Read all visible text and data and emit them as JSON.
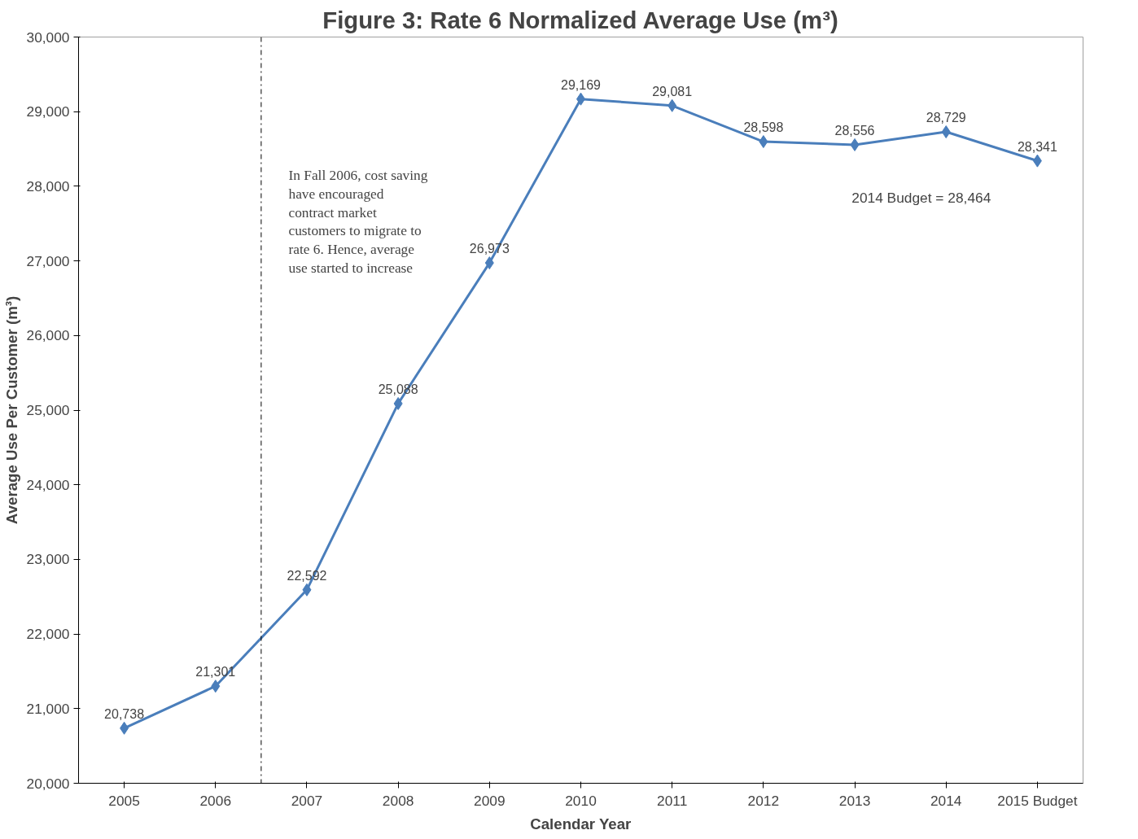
{
  "chart_data": {
    "type": "line",
    "title": "Figure 3: Rate 6 Normalized Average Use (m³)",
    "xlabel": "Calendar Year",
    "ylabel": "Average Use Per Customer (m³)",
    "x": [
      2005,
      2006,
      2007,
      2008,
      2009,
      2010,
      2011,
      2012,
      2013,
      2014,
      2015
    ],
    "xlim": [
      2004.5,
      2015.5
    ],
    "xticks": [
      2005,
      2006,
      2007,
      2008,
      2009,
      2010,
      2011,
      2012,
      2013,
      2014,
      {
        "value": 2015,
        "label": "2015 Budget"
      }
    ],
    "series": [
      {
        "color": "#4a7ebb",
        "values": [
          20738,
          21301,
          22592,
          25088,
          26973,
          29169,
          29081,
          28598,
          28556,
          28729,
          28341
        ],
        "value_labels": [
          "20,738",
          "21,301",
          "22,592",
          "25,088",
          "26,973",
          "29,169",
          "29,081",
          "28,598",
          "28,556",
          "28,729",
          "28,341"
        ]
      }
    ],
    "ylim": [
      20000,
      30000
    ],
    "yticks": [
      {
        "value": 20000,
        "label": "20,000"
      },
      {
        "value": 21000,
        "label": "21,000"
      },
      {
        "value": 22000,
        "label": "22,000"
      },
      {
        "value": 23000,
        "label": "23,000"
      },
      {
        "value": 24000,
        "label": "24,000"
      },
      {
        "value": 25000,
        "label": "25,000"
      },
      {
        "value": 26000,
        "label": "26,000"
      },
      {
        "value": 27000,
        "label": "27,000"
      },
      {
        "value": 28000,
        "label": "28,000"
      },
      {
        "value": 29000,
        "label": "29,000"
      },
      {
        "value": 30000,
        "label": "30,000"
      }
    ],
    "ref_lines": [
      {
        "axis": "x",
        "value": 2006.5,
        "color": "#000000",
        "line_style": "dashdot"
      }
    ],
    "annotations": [
      "In Fall 2006, cost saving\nhave encouraged\ncontract market\ncustomers to migrate to\nrate 6. Hence, average\nuse started to increase",
      "2014 Budget  = 28,464"
    ],
    "marker": "diamond",
    "line_style": "solid",
    "grid": false
  }
}
